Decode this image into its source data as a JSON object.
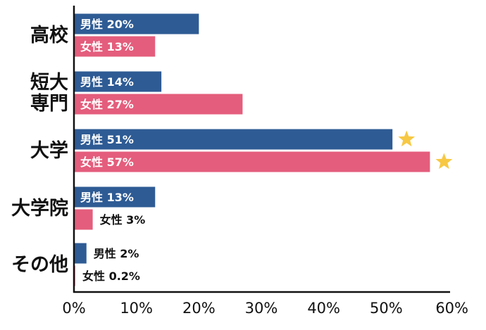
{
  "chart_data": {
    "type": "bar",
    "orientation": "horizontal",
    "categories": [
      [
        "高校"
      ],
      [
        "短大",
        "専門"
      ],
      [
        "大学"
      ],
      [
        "大学院"
      ],
      [
        "その他"
      ]
    ],
    "series": [
      {
        "name": "男性",
        "color": "#2e5b94",
        "values": [
          20,
          14,
          51,
          13,
          2
        ],
        "labels": [
          "男性 20%",
          "男性 14%",
          "男性 51%",
          "男性 13%",
          "男性 2%"
        ]
      },
      {
        "name": "女性",
        "color": "#e45d7c",
        "values": [
          13,
          27,
          57,
          3,
          0.2
        ],
        "labels": [
          "女性 13%",
          "女性 27%",
          "女性 57%",
          "女性 3%",
          "女性 0.2%"
        ]
      }
    ],
    "xlim": [
      0,
      60
    ],
    "xticks": [
      "0%",
      "10%",
      "20%",
      "30%",
      "40%",
      "50%",
      "60%"
    ],
    "highlight": {
      "category_index": 2,
      "marker": "star-icon",
      "color": "#f7c843"
    },
    "grid": false,
    "legend": "none"
  }
}
